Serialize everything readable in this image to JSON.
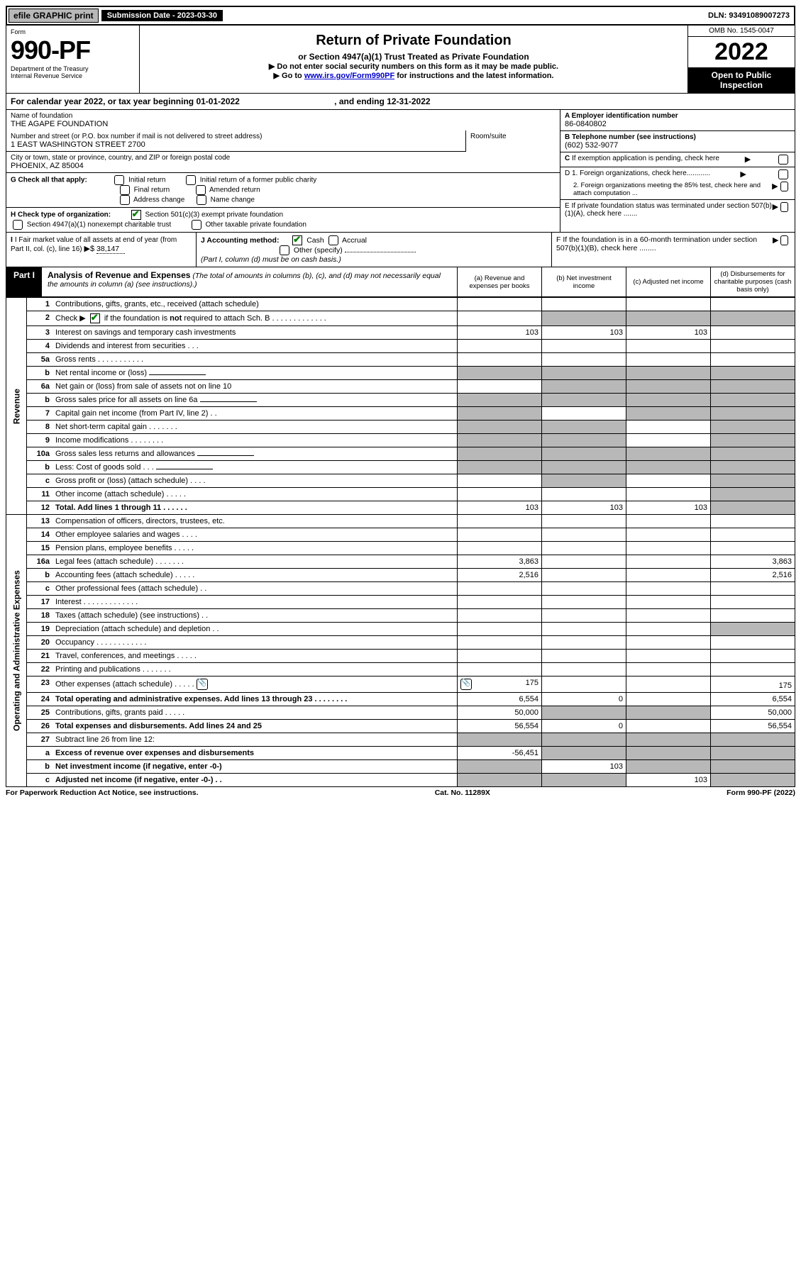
{
  "topbar": {
    "efile": "efile GRAPHIC print",
    "sub_label": "Submission Date - 2023-03-30",
    "dln": "DLN: 93491089007273"
  },
  "header": {
    "form_word": "Form",
    "form_no": "990-PF",
    "dept": "Department of the Treasury",
    "irs": "Internal Revenue Service",
    "title": "Return of Private Foundation",
    "subtitle": "or Section 4947(a)(1) Trust Treated as Private Foundation",
    "instr1": "▶ Do not enter social security numbers on this form as it may be made public.",
    "instr2_pre": "▶ Go to ",
    "instr2_link": "www.irs.gov/Form990PF",
    "instr2_post": " for instructions and the latest information.",
    "omb": "OMB No. 1545-0047",
    "year": "2022",
    "open": "Open to Public Inspection"
  },
  "cy": {
    "label_pre": "For calendar year 2022, or tax year beginning ",
    "begin": "01-01-2022",
    "label_mid": " , and ending ",
    "end": "12-31-2022"
  },
  "info": {
    "name_label": "Name of foundation",
    "name": "THE AGAPE FOUNDATION",
    "addr_label": "Number and street (or P.O. box number if mail is not delivered to street address)",
    "addr": "1 EAST WASHINGTON STREET 2700",
    "room_label": "Room/suite",
    "city_label": "City or town, state or province, country, and ZIP or foreign postal code",
    "city": "PHOENIX, AZ  85004",
    "a_label": "A Employer identification number",
    "a_val": "86-0840802",
    "b_label": "B Telephone number (see instructions)",
    "b_val": "(602) 532-9077",
    "c_label": "C If exemption application is pending, check here",
    "d1_label": "D 1. Foreign organizations, check here............",
    "d2_label": "2. Foreign organizations meeting the 85% test, check here and attach computation ...",
    "e_label": "E  If private foundation status was terminated under section 507(b)(1)(A), check here .......",
    "f_label": "F  If the foundation is in a 60-month termination under section 507(b)(1)(B), check here ........"
  },
  "g": {
    "label": "G Check all that apply:",
    "opts": [
      "Initial return",
      "Initial return of a former public charity",
      "Final return",
      "Amended return",
      "Address change",
      "Name change"
    ]
  },
  "h": {
    "label": "H Check type of organization:",
    "opt1": "Section 501(c)(3) exempt private foundation",
    "opt2": "Section 4947(a)(1) nonexempt charitable trust",
    "opt3": "Other taxable private foundation"
  },
  "i": {
    "label": "I Fair market value of all assets at end of year (from Part II, col. (c), line 16)",
    "arrow": "▶$",
    "val": "38,147"
  },
  "j": {
    "label": "J Accounting method:",
    "cash": "Cash",
    "accrual": "Accrual",
    "other": "Other (specify)",
    "note": "(Part I, column (d) must be on cash basis.)"
  },
  "part1": {
    "label": "Part I",
    "title": "Analysis of Revenue and Expenses",
    "note": " (The total of amounts in columns (b), (c), and (d) may not necessarily equal the amounts in column (a) (see instructions).)",
    "col_a": "(a) Revenue and expenses per books",
    "col_b": "(b) Net investment income",
    "col_c": "(c) Adjusted net income",
    "col_d": "(d) Disbursements for charitable purposes (cash basis only)"
  },
  "side_labels": {
    "revenue": "Revenue",
    "expenses": "Operating and Administrative Expenses"
  },
  "rows": [
    {
      "n": "1",
      "d": "Contributions, gifts, grants, etc., received (attach schedule)",
      "a": "",
      "b": "",
      "c": "",
      "dcol": "",
      "grey_d": false
    },
    {
      "n": "2",
      "d": "Check ▶ ☑ if the foundation is not required to attach Sch. B",
      "dots": true,
      "a": "",
      "b": "g",
      "c": "g",
      "dcol": "g"
    },
    {
      "n": "3",
      "d": "Interest on savings and temporary cash investments",
      "a": "103",
      "b": "103",
      "c": "103",
      "dcol": ""
    },
    {
      "n": "4",
      "d": "Dividends and interest from securities   .   .   .",
      "a": "",
      "b": "",
      "c": "",
      "dcol": ""
    },
    {
      "n": "5a",
      "d": "Gross rents   .   .   .   .   .   .   .   .   .   .   .",
      "a": "",
      "b": "",
      "c": "",
      "dcol": ""
    },
    {
      "n": "b",
      "d": "Net rental income or (loss)",
      "a": "g",
      "b": "g",
      "c": "g",
      "dcol": "g",
      "underline": true
    },
    {
      "n": "6a",
      "d": "Net gain or (loss) from sale of assets not on line 10",
      "a": "",
      "b": "g",
      "c": "g",
      "dcol": "g"
    },
    {
      "n": "b",
      "d": "Gross sales price for all assets on line 6a",
      "a": "g",
      "b": "g",
      "c": "g",
      "dcol": "g",
      "underline": true
    },
    {
      "n": "7",
      "d": "Capital gain net income (from Part IV, line 2)   .   .",
      "a": "g",
      "b": "",
      "c": "g",
      "dcol": "g"
    },
    {
      "n": "8",
      "d": "Net short-term capital gain   .   .   .   .   .   .   .",
      "a": "g",
      "b": "g",
      "c": "",
      "dcol": "g"
    },
    {
      "n": "9",
      "d": "Income modifications   .   .   .   .   .   .   .   .",
      "a": "g",
      "b": "g",
      "c": "",
      "dcol": "g"
    },
    {
      "n": "10a",
      "d": "Gross sales less returns and allowances",
      "a": "g",
      "b": "g",
      "c": "g",
      "dcol": "g",
      "underline": true
    },
    {
      "n": "b",
      "d": "Less: Cost of goods sold   .   .   .",
      "a": "g",
      "b": "g",
      "c": "g",
      "dcol": "g",
      "underline": true
    },
    {
      "n": "c",
      "d": "Gross profit or (loss) (attach schedule)   .   .   .   .",
      "a": "",
      "b": "g",
      "c": "",
      "dcol": "g"
    },
    {
      "n": "11",
      "d": "Other income (attach schedule)   .   .   .   .   .",
      "a": "",
      "b": "",
      "c": "",
      "dcol": "g"
    },
    {
      "n": "12",
      "d": "Total. Add lines 1 through 11   .   .   .   .   .   .",
      "bold": true,
      "a": "103",
      "b": "103",
      "c": "103",
      "dcol": "g"
    },
    {
      "n": "13",
      "d": "Compensation of officers, directors, trustees, etc.",
      "a": "",
      "b": "",
      "c": "",
      "dcol": ""
    },
    {
      "n": "14",
      "d": "Other employee salaries and wages   .   .   .   .",
      "a": "",
      "b": "",
      "c": "",
      "dcol": ""
    },
    {
      "n": "15",
      "d": "Pension plans, employee benefits   .   .   .   .   .",
      "a": "",
      "b": "",
      "c": "",
      "dcol": ""
    },
    {
      "n": "16a",
      "d": "Legal fees (attach schedule)   .   .   .   .   .   .   .",
      "a": "3,863",
      "b": "",
      "c": "",
      "dcol": "3,863"
    },
    {
      "n": "b",
      "d": "Accounting fees (attach schedule)   .   .   .   .   .",
      "a": "2,516",
      "b": "",
      "c": "",
      "dcol": "2,516"
    },
    {
      "n": "c",
      "d": "Other professional fees (attach schedule)   .   .",
      "a": "",
      "b": "",
      "c": "",
      "dcol": ""
    },
    {
      "n": "17",
      "d": "Interest   .   .   .   .   .   .   .   .   .   .   .   .   .",
      "a": "",
      "b": "",
      "c": "",
      "dcol": ""
    },
    {
      "n": "18",
      "d": "Taxes (attach schedule) (see instructions)   .   .",
      "a": "",
      "b": "",
      "c": "",
      "dcol": ""
    },
    {
      "n": "19",
      "d": "Depreciation (attach schedule) and depletion   .   .",
      "a": "",
      "b": "",
      "c": "",
      "dcol": "g"
    },
    {
      "n": "20",
      "d": "Occupancy   .   .   .   .   .   .   .   .   .   .   .   .",
      "a": "",
      "b": "",
      "c": "",
      "dcol": ""
    },
    {
      "n": "21",
      "d": "Travel, conferences, and meetings   .   .   .   .   .",
      "a": "",
      "b": "",
      "c": "",
      "dcol": ""
    },
    {
      "n": "22",
      "d": "Printing and publications   .   .   .   .   .   .   .",
      "a": "",
      "b": "",
      "c": "",
      "dcol": ""
    },
    {
      "n": "23",
      "d": "Other expenses (attach schedule)   .   .   .   .   .",
      "icon": true,
      "a": "175",
      "b": "",
      "c": "",
      "dcol": "175"
    },
    {
      "n": "24",
      "d": "Total operating and administrative expenses. Add lines 13 through 23   .   .   .   .   .   .   .   .",
      "bold": true,
      "a": "6,554",
      "b": "0",
      "c": "",
      "dcol": "6,554"
    },
    {
      "n": "25",
      "d": "Contributions, gifts, grants paid   .   .   .   .   .",
      "a": "50,000",
      "b": "g",
      "c": "g",
      "dcol": "50,000"
    },
    {
      "n": "26",
      "d": "Total expenses and disbursements. Add lines 24 and 25",
      "bold": true,
      "a": "56,554",
      "b": "0",
      "c": "",
      "dcol": "56,554"
    },
    {
      "n": "27",
      "d": "Subtract line 26 from line 12:",
      "a": "g",
      "b": "g",
      "c": "g",
      "dcol": "g"
    },
    {
      "n": "a",
      "d": "Excess of revenue over expenses and disbursements",
      "bold": true,
      "a": "-56,451",
      "b": "g",
      "c": "g",
      "dcol": "g"
    },
    {
      "n": "b",
      "d": "Net investment income (if negative, enter -0-)",
      "bold": true,
      "a": "g",
      "b": "103",
      "c": "g",
      "dcol": "g"
    },
    {
      "n": "c",
      "d": "Adjusted net income (if negative, enter -0-)   .   .",
      "bold": true,
      "a": "g",
      "b": "g",
      "c": "103",
      "dcol": "g"
    }
  ],
  "foot": {
    "left": "For Paperwork Reduction Act Notice, see instructions.",
    "mid": "Cat. No. 11289X",
    "right": "Form 990-PF (2022)"
  },
  "colors": {
    "grey": "#b8b8b8",
    "link": "#0000cc",
    "check": "#008000"
  }
}
